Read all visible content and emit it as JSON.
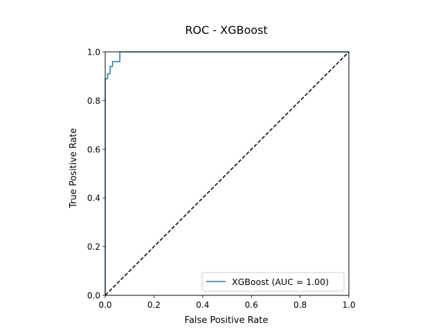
{
  "chart_data": {
    "type": "line",
    "title": "ROC - XGBoost",
    "xlabel": "False Positive Rate",
    "ylabel": "True Positive Rate",
    "xlim": [
      0.0,
      1.0
    ],
    "ylim": [
      0.0,
      1.0
    ],
    "xticks": [
      "0.0",
      "0.2",
      "0.4",
      "0.6",
      "0.8",
      "1.0"
    ],
    "yticks": [
      "0.0",
      "0.2",
      "0.4",
      "0.6",
      "0.8",
      "1.0"
    ],
    "grid": false,
    "legend_position": "lower-right",
    "series": [
      {
        "name": "XGBoost (AUC = 1.00)",
        "color": "#1f77b4",
        "style": "solid",
        "x": [
          0.0,
          0.0,
          0.0,
          0.0,
          0.01,
          0.01,
          0.02,
          0.02,
          0.03,
          0.03,
          0.04,
          0.04,
          0.06,
          0.06,
          1.0
        ],
        "y": [
          0.0,
          0.06,
          0.88,
          0.89,
          0.89,
          0.91,
          0.91,
          0.94,
          0.94,
          0.96,
          0.96,
          0.96,
          0.96,
          1.0,
          1.0
        ]
      },
      {
        "name": "",
        "color": "#000000",
        "style": "dashed",
        "x": [
          0.0,
          1.0
        ],
        "y": [
          0.0,
          1.0
        ]
      }
    ]
  }
}
